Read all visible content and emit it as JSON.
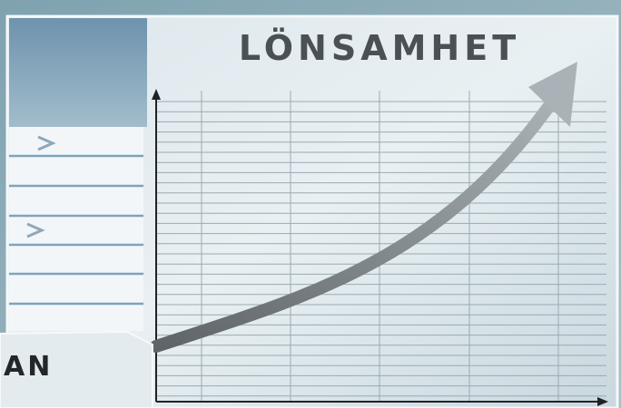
{
  "title": "LÖNSAMHET",
  "corner_text": "AN"
}
